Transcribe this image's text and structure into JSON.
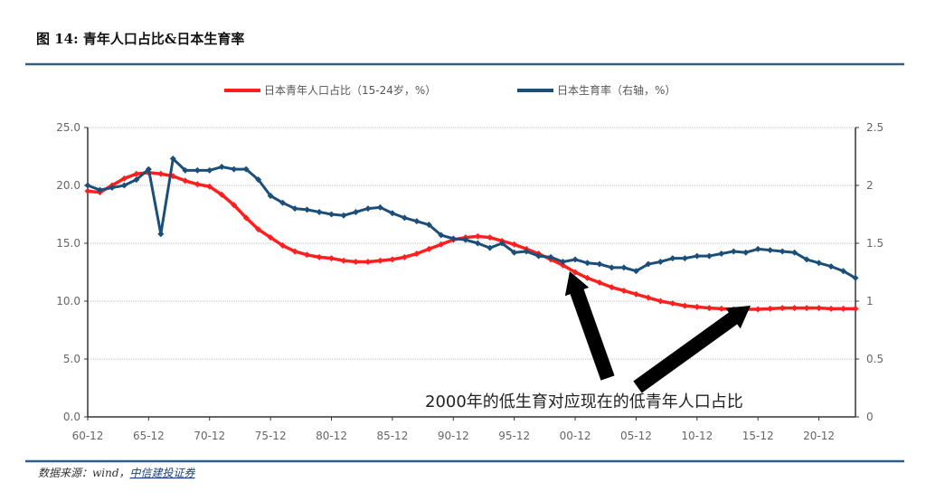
{
  "title": "图 14: 青年人口占比&日本生育率",
  "source_prefix": "数据来源：wind，",
  "source_link": "中信建投证券",
  "colors": {
    "youth_share": "#ff1f1f",
    "fertility": "#1b4f7a",
    "rule": "#2e5f8a",
    "arrow": "#000000"
  },
  "chart_data": {
    "type": "line",
    "title": "",
    "grid": true,
    "legend_position": "top",
    "x": [
      1960,
      1961,
      1962,
      1963,
      1964,
      1965,
      1966,
      1967,
      1968,
      1969,
      1970,
      1971,
      1972,
      1973,
      1974,
      1975,
      1976,
      1977,
      1978,
      1979,
      1980,
      1981,
      1982,
      1983,
      1984,
      1985,
      1986,
      1987,
      1988,
      1989,
      1990,
      1991,
      1992,
      1993,
      1994,
      1995,
      1996,
      1997,
      1998,
      1999,
      2000,
      2001,
      2002,
      2003,
      2004,
      2005,
      2006,
      2007,
      2008,
      2009,
      2010,
      2011,
      2012,
      2013,
      2014,
      2015,
      2016,
      2017,
      2018,
      2019,
      2020,
      2021,
      2022,
      2023
    ],
    "x_tick_labels": [
      "60-12",
      "65-12",
      "70-12",
      "75-12",
      "80-12",
      "85-12",
      "90-12",
      "95-12",
      "00-12",
      "05-12",
      "10-12",
      "15-12",
      "20-12"
    ],
    "y_left": {
      "range": [
        0,
        25
      ],
      "tick_labels": [
        "0.0",
        "5.0",
        "10.0",
        "15.0",
        "20.0",
        "25.0"
      ]
    },
    "y_right": {
      "range": [
        0,
        2.5
      ],
      "tick_labels": [
        "0",
        "0.5",
        "1",
        "1.5",
        "2",
        "2.5"
      ]
    },
    "series": [
      {
        "name": "日本青年人口占比（15-24岁，%）",
        "axis": "left",
        "marker": "diamond",
        "values": [
          19.5,
          19.4,
          20.0,
          20.6,
          21.0,
          21.1,
          21.0,
          20.8,
          20.4,
          20.1,
          19.9,
          19.2,
          18.3,
          17.2,
          16.2,
          15.5,
          14.8,
          14.3,
          14.0,
          13.8,
          13.7,
          13.5,
          13.4,
          13.4,
          13.5,
          13.6,
          13.8,
          14.1,
          14.5,
          14.9,
          15.3,
          15.5,
          15.6,
          15.5,
          15.2,
          14.9,
          14.5,
          14.1,
          13.6,
          13.1,
          12.5,
          12.0,
          11.6,
          11.2,
          10.9,
          10.6,
          10.3,
          10.0,
          9.8,
          9.6,
          9.5,
          9.4,
          9.35,
          9.3,
          9.3,
          9.3,
          9.35,
          9.4,
          9.4,
          9.4,
          9.4,
          9.35,
          9.35,
          9.35
        ]
      },
      {
        "name": "日本生育率（右轴，%）",
        "axis": "right",
        "marker": "diamond",
        "values": [
          2.0,
          1.96,
          1.98,
          2.0,
          2.05,
          2.14,
          1.58,
          2.23,
          2.13,
          2.13,
          2.13,
          2.16,
          2.14,
          2.14,
          2.05,
          1.91,
          1.85,
          1.8,
          1.79,
          1.77,
          1.75,
          1.74,
          1.77,
          1.8,
          1.81,
          1.76,
          1.72,
          1.69,
          1.66,
          1.57,
          1.54,
          1.53,
          1.5,
          1.46,
          1.5,
          1.42,
          1.43,
          1.39,
          1.38,
          1.34,
          1.36,
          1.33,
          1.32,
          1.29,
          1.29,
          1.26,
          1.32,
          1.34,
          1.37,
          1.37,
          1.39,
          1.39,
          1.41,
          1.43,
          1.42,
          1.45,
          1.44,
          1.43,
          1.42,
          1.36,
          1.33,
          1.3,
          1.26,
          1.2
        ]
      }
    ],
    "annotation": "2000年的低生育对应现在的低青年人口占比"
  }
}
